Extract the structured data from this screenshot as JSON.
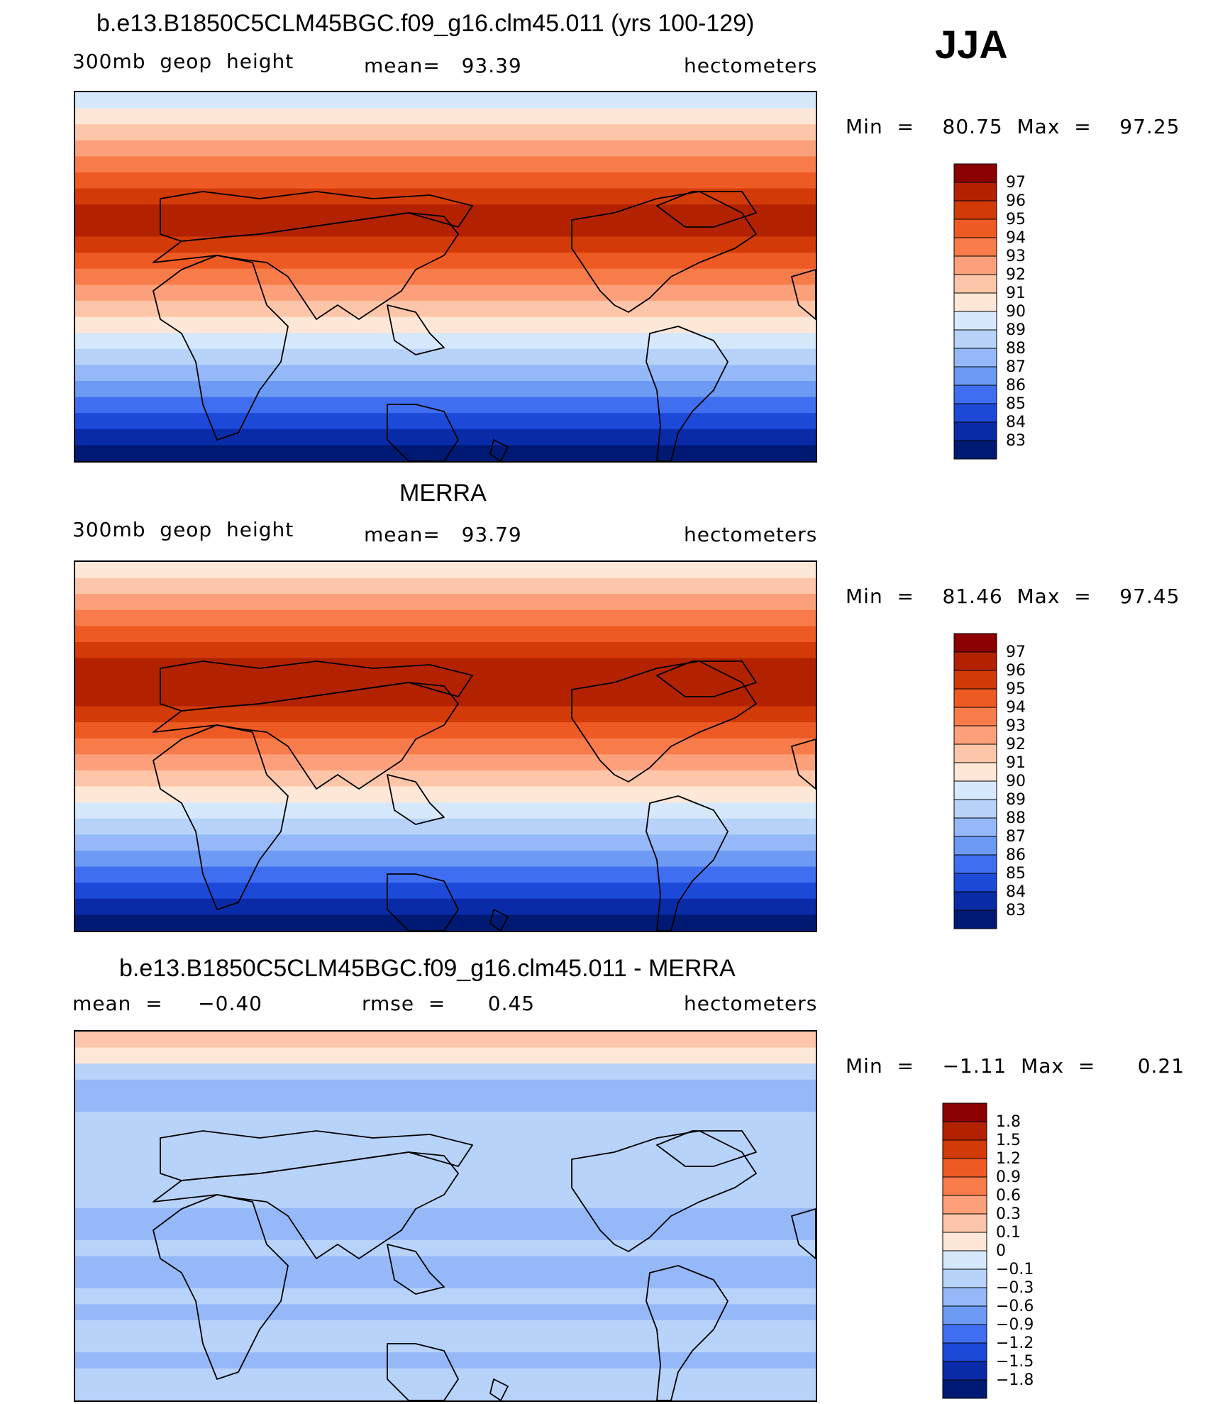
{
  "season": "JJA",
  "panels": [
    {
      "id": "model",
      "title": "b.e13.B1850C5CLM45BGC.f09_g16.clm45.011 (yrs 100-129)",
      "left": "300mb  geop  height",
      "center": "mean=   93.39",
      "right": "hectometers",
      "minmax": "Min  =    80.75  Max  =    97.25",
      "colorbar": {
        "labels": [
          "97",
          "96",
          "95",
          "94",
          "93",
          "92",
          "91",
          "90",
          "89",
          "88",
          "87",
          "86",
          "85",
          "84",
          "83"
        ],
        "colors": [
          "#8b0000",
          "#b22200",
          "#d23a08",
          "#ee5a24",
          "#f77c4a",
          "#fba07a",
          "#fdc6a8",
          "#fee7d6",
          "#d6e8fb",
          "#b8d3fa",
          "#95b9f8",
          "#6d9af3",
          "#3f6ff0",
          "#1c49d8",
          "#0a2ba8",
          "#001a73"
        ]
      },
      "bands": [
        "#d6e8fb",
        "#fee7d6",
        "#fdc6a8",
        "#fba07a",
        "#f77c4a",
        "#ee5a24",
        "#d23a08",
        "#b22200",
        "#b22200",
        "#d23a08",
        "#ee5a24",
        "#f77c4a",
        "#fba07a",
        "#fdc6a8",
        "#fee7d6",
        "#d6e8fb",
        "#b8d3fa",
        "#95b9f8",
        "#6d9af3",
        "#3f6ff0",
        "#1c49d8",
        "#0a2ba8",
        "#001a73"
      ]
    },
    {
      "id": "obs",
      "title": "MERRA",
      "left": "300mb  geop  height",
      "center": "mean=   93.79",
      "right": "hectometers",
      "minmax": "Min  =    81.46  Max  =    97.45",
      "colorbar": {
        "labels": [
          "97",
          "96",
          "95",
          "94",
          "93",
          "92",
          "91",
          "90",
          "89",
          "88",
          "87",
          "86",
          "85",
          "84",
          "83"
        ],
        "colors": [
          "#8b0000",
          "#b22200",
          "#d23a08",
          "#ee5a24",
          "#f77c4a",
          "#fba07a",
          "#fdc6a8",
          "#fee7d6",
          "#d6e8fb",
          "#b8d3fa",
          "#95b9f8",
          "#6d9af3",
          "#3f6ff0",
          "#1c49d8",
          "#0a2ba8",
          "#001a73"
        ]
      },
      "bands": [
        "#fee7d6",
        "#fdc6a8",
        "#fba07a",
        "#f77c4a",
        "#ee5a24",
        "#d23a08",
        "#b22200",
        "#b22200",
        "#b22200",
        "#d23a08",
        "#ee5a24",
        "#f77c4a",
        "#fba07a",
        "#fdc6a8",
        "#fee7d6",
        "#d6e8fb",
        "#b8d3fa",
        "#95b9f8",
        "#6d9af3",
        "#3f6ff0",
        "#1c49d8",
        "#0a2ba8",
        "#001a73"
      ]
    },
    {
      "id": "diff",
      "title": "b.e13.B1850C5CLM45BGC.f09_g16.clm45.011 - MERRA",
      "left": "mean  =     −0.40",
      "center": "rmse  =      0.45",
      "right": "hectometers",
      "minmax": "Min  =    −1.11  Max  =      0.21",
      "colorbar": {
        "labels": [
          "1.8",
          "1.5",
          "1.2",
          "0.9",
          "0.6",
          "0.3",
          "0.1",
          "0",
          "−0.1",
          "−0.3",
          "−0.6",
          "−0.9",
          "−1.2",
          "−1.5",
          "−1.8"
        ],
        "colors": [
          "#8b0000",
          "#b22200",
          "#d23a08",
          "#ee5a24",
          "#f77c4a",
          "#fba07a",
          "#fdc6a8",
          "#fee7d6",
          "#d6e8fb",
          "#b8d3fa",
          "#95b9f8",
          "#6d9af3",
          "#3f6ff0",
          "#1c49d8",
          "#0a2ba8",
          "#001a73"
        ]
      },
      "bands": [
        "#fdc6a8",
        "#fee7d6",
        "#b8d3fa",
        "#95b9f8",
        "#95b9f8",
        "#b8d3fa",
        "#b8d3fa",
        "#b8d3fa",
        "#b8d3fa",
        "#b8d3fa",
        "#b8d3fa",
        "#95b9f8",
        "#95b9f8",
        "#b8d3fa",
        "#95b9f8",
        "#95b9f8",
        "#b8d3fa",
        "#95b9f8",
        "#b8d3fa",
        "#b8d3fa",
        "#95b9f8",
        "#b8d3fa",
        "#b8d3fa"
      ]
    }
  ]
}
